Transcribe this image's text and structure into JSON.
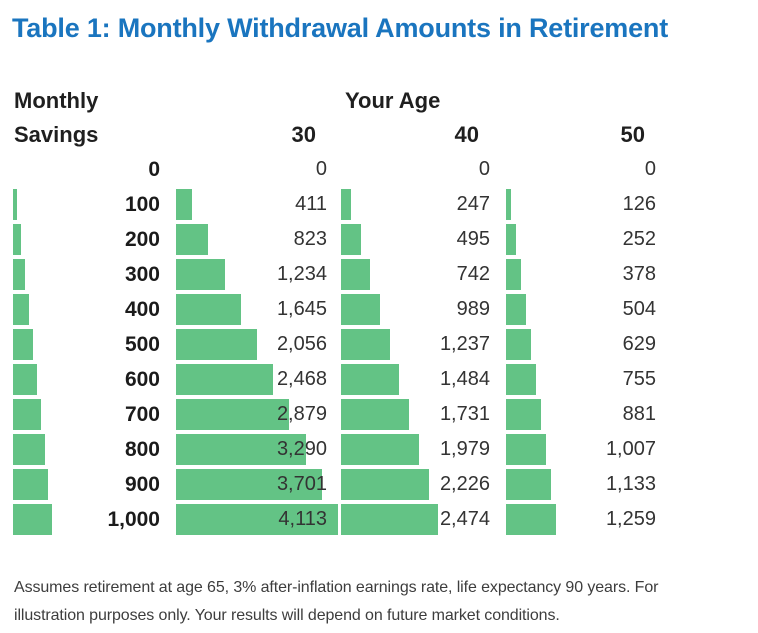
{
  "title": "Table 1: Monthly Withdrawal Amounts in Retirement",
  "colors": {
    "title_blue": "#1a75bf",
    "bar_green": "#63c385"
  },
  "header": {
    "row_group_line1": "Monthly",
    "row_group_line2": "Savings",
    "col_group": "Your Age",
    "age_cols": [
      "30",
      "40",
      "50"
    ]
  },
  "table": {
    "rows": [
      {
        "savings": "0",
        "values": [
          "0",
          "0",
          "0"
        ]
      },
      {
        "savings": "100",
        "values": [
          "411",
          "247",
          "126"
        ]
      },
      {
        "savings": "200",
        "values": [
          "823",
          "495",
          "252"
        ]
      },
      {
        "savings": "300",
        "values": [
          "1,234",
          "742",
          "378"
        ]
      },
      {
        "savings": "400",
        "values": [
          "1,645",
          "989",
          "504"
        ]
      },
      {
        "savings": "500",
        "values": [
          "2,056",
          "1,237",
          "629"
        ]
      },
      {
        "savings": "600",
        "values": [
          "2,468",
          "1,484",
          "755"
        ]
      },
      {
        "savings": "700",
        "values": [
          "2,879",
          "1,731",
          "881"
        ]
      },
      {
        "savings": "800",
        "values": [
          "3,290",
          "1,979",
          "1,007"
        ]
      },
      {
        "savings": "900",
        "values": [
          "3,701",
          "2,226",
          "1,133"
        ]
      },
      {
        "savings": "1,000",
        "values": [
          "4,113",
          "2,474",
          "1,259"
        ]
      }
    ]
  },
  "footnote": {
    "lines": [
      "Assumes retirement at age 65, 3% after-inflation earnings rate, life expectancy 90 years. For",
      "illustration purposes only. Your results will depend on future market conditions."
    ]
  },
  "chart_data": {
    "type": "table",
    "title": "Table 1: Monthly Withdrawal Amounts in Retirement",
    "row_label": "Monthly Savings",
    "col_group_label": "Your Age",
    "categories": [
      0,
      100,
      200,
      300,
      400,
      500,
      600,
      700,
      800,
      900,
      1000
    ],
    "series": [
      {
        "name": "30",
        "values": [
          0,
          411,
          823,
          1234,
          1645,
          2056,
          2468,
          2879,
          3290,
          3701,
          4113
        ]
      },
      {
        "name": "40",
        "values": [
          0,
          247,
          495,
          742,
          989,
          1237,
          1484,
          1731,
          1979,
          2226,
          2474
        ]
      },
      {
        "name": "50",
        "values": [
          0,
          126,
          252,
          378,
          504,
          629,
          755,
          881,
          1007,
          1133,
          1259
        ]
      }
    ],
    "note": "In-cell horizontal bars; bar length proportional to value, same scale for savings column and all age columns"
  }
}
